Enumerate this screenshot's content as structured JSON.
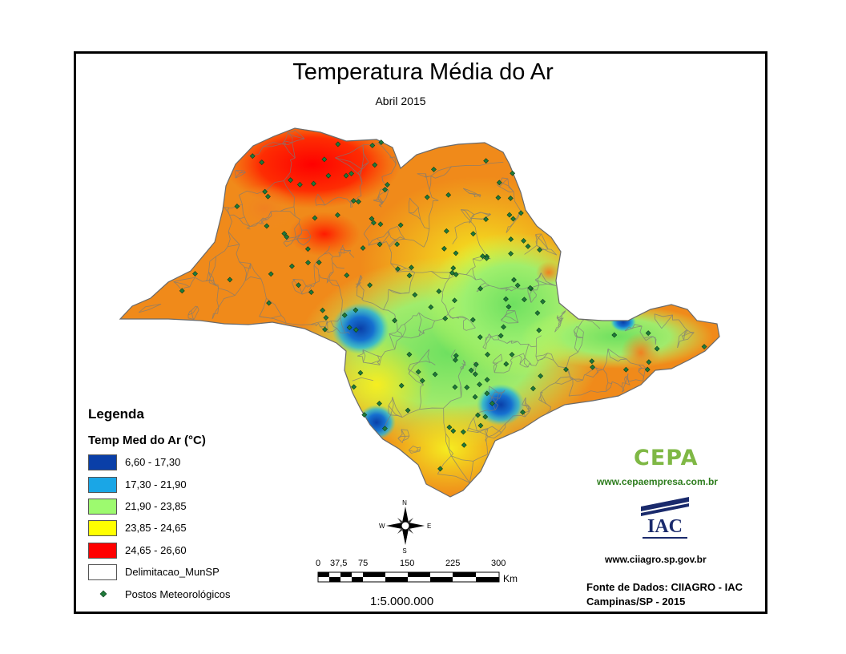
{
  "title": "Temperatura Média do Ar",
  "subtitle": "Abril 2015",
  "legend": {
    "heading": "Legenda",
    "subheading": "Temp Med do Ar (°C)",
    "classes": [
      {
        "label": "6,60 - 17,30",
        "color": "#0a3fa8"
      },
      {
        "label": "17,30 - 21,90",
        "color": "#1aa6e6"
      },
      {
        "label": "21,90 - 23,85",
        "color": "#9dfa6f"
      },
      {
        "label": "23,85 - 24,65",
        "color": "#ffff00"
      },
      {
        "label": "24,65 - 26,60",
        "color": "#ff0000"
      }
    ],
    "boundary_label": "Delimitacao_MunSP",
    "stations_label": "Postos Meteorológicos"
  },
  "scale": {
    "ticks": [
      "0",
      "37,5",
      "75",
      "150",
      "225",
      "300"
    ],
    "unit": "Km",
    "ratio": "1:5.000.000"
  },
  "compass": {
    "n": "N",
    "s": "S",
    "e": "E",
    "w": "W"
  },
  "credits": {
    "cepa_logo": "CEPA",
    "cepa_url": "www.cepaempresa.com.br",
    "iac_logo": "IAC",
    "iac_url": "www.ciiagro.sp.gov.br",
    "fonte_line1": "Fonte de Dados: CIIAGRO - IAC",
    "fonte_line2": "Campinas/SP - 2015"
  },
  "colors": {
    "station": "#1f7a3a",
    "municipal_boundary": "#7a7a7a"
  }
}
